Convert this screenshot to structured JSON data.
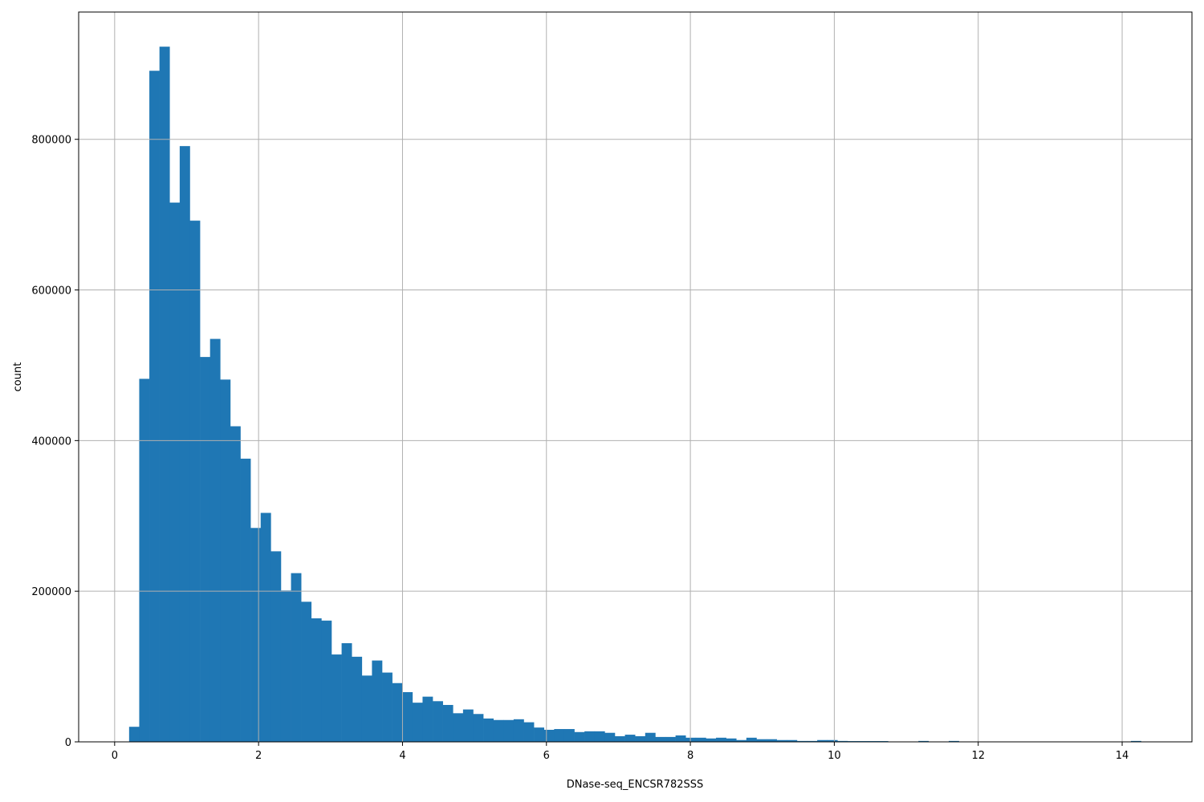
{
  "chart_data": {
    "type": "bar",
    "subtype": "histogram",
    "title": "",
    "xlabel": "DNase-seq_ENCSR782SSS",
    "ylabel": "count",
    "xlim": [
      -0.5,
      14.97
    ],
    "ylim": [
      0,
      969000
    ],
    "grid": true,
    "bar_color": "#1f77b4",
    "grid_color": "#b0b0b0",
    "bin_range": [
      0.201,
      14.262
    ],
    "bin_count": 100,
    "xticks": [
      0,
      2,
      4,
      6,
      8,
      10,
      12,
      14
    ],
    "xtick_labels": [
      "0",
      "2",
      "4",
      "6",
      "8",
      "10",
      "12",
      "14"
    ],
    "yticks": [
      0,
      200000,
      400000,
      600000,
      800000
    ],
    "ytick_labels": [
      "0",
      "200000",
      "400000",
      "600000",
      "800000"
    ],
    "values": [
      20000,
      482000,
      891000,
      923000,
      716000,
      791000,
      692000,
      511000,
      535000,
      481000,
      419000,
      376000,
      284000,
      304000,
      253000,
      201000,
      224000,
      186000,
      164000,
      161000,
      116000,
      131000,
      113000,
      88000,
      108000,
      92000,
      78000,
      66000,
      52000,
      60000,
      54000,
      49000,
      38000,
      43000,
      37000,
      31000,
      29000,
      29000,
      30000,
      26000,
      19000,
      16000,
      17000,
      17000,
      13000,
      14000,
      14000,
      12000,
      7500,
      9500,
      7500,
      12000,
      6500,
      6500,
      8500,
      5500,
      5500,
      4500,
      5500,
      4500,
      2400,
      5500,
      3500,
      3500,
      2400,
      2400,
      1200,
      1200,
      2400,
      2400,
      1200,
      1000,
      1000,
      1000,
      1000,
      0,
      0,
      0,
      1200,
      0,
      0,
      1200,
      0,
      0,
      0,
      0,
      0,
      0,
      0,
      0,
      0,
      0,
      0,
      0,
      0,
      0,
      0,
      0,
      0,
      1200
    ]
  }
}
